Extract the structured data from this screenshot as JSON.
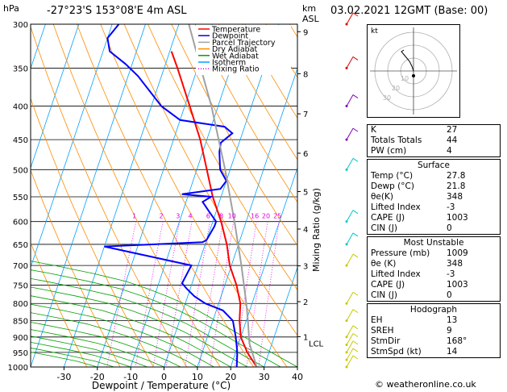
{
  "header": {
    "left_unit": "hPa",
    "location": "-27°23'S  153°08'E  4m  ASL",
    "km_label": "km",
    "asl_label": "ASL",
    "datetime": "03.02.2021  12GMT  (Base: 00)"
  },
  "legend": [
    {
      "label": "Temperature",
      "color": "#ff0000",
      "style": "solid"
    },
    {
      "label": "Dewpoint",
      "color": "#0000ff",
      "style": "solid"
    },
    {
      "label": "Parcel Trajectory",
      "color": "#a0a0a0",
      "style": "solid"
    },
    {
      "label": "Dry Adiabat",
      "color": "#ff8c00",
      "style": "solid"
    },
    {
      "label": "Wet Adiabat",
      "color": "#00a000",
      "style": "solid"
    },
    {
      "label": "Isotherm",
      "color": "#00a0ff",
      "style": "solid"
    },
    {
      "label": "Mixing Ratio",
      "color": "#e000e0",
      "style": "dotted"
    }
  ],
  "chart_data": {
    "type": "skew-t",
    "xlabel": "Dewpoint / Temperature (°C)",
    "ylabel_right": "Mixing Ratio (g/kg)",
    "pressure_ticks": [
      300,
      350,
      400,
      450,
      500,
      550,
      600,
      650,
      700,
      750,
      800,
      850,
      900,
      950,
      1000
    ],
    "temp_ticks": [
      -30,
      -20,
      -10,
      0,
      10,
      20,
      30,
      40
    ],
    "xlim": [
      -40,
      40
    ],
    "ylim": [
      1000,
      300
    ],
    "km_ticks": [
      {
        "label": "9",
        "p": 308
      },
      {
        "label": "8",
        "p": 357
      },
      {
        "label": "7",
        "p": 411
      },
      {
        "label": "6",
        "p": 472
      },
      {
        "label": "5",
        "p": 540
      },
      {
        "label": "4",
        "p": 616
      },
      {
        "label": "3",
        "p": 701
      },
      {
        "label": "2",
        "p": 795
      },
      {
        "label": "1",
        "p": 899
      }
    ],
    "lcl_label": "LCL",
    "lcl_p": 920,
    "mixing_ratio_labels": [
      "1",
      "2",
      "3",
      "4",
      "6",
      "8",
      "10",
      "16",
      "20",
      "25"
    ],
    "series": [
      {
        "name": "Temperature",
        "color": "#ff0000",
        "points": [
          [
            1000,
            27.8
          ],
          [
            950,
            23.5
          ],
          [
            900,
            20.0
          ],
          [
            850,
            18.0
          ],
          [
            800,
            16.5
          ],
          [
            750,
            13.5
          ],
          [
            700,
            9.5
          ],
          [
            650,
            6.5
          ],
          [
            600,
            2.5
          ],
          [
            550,
            -2.5
          ],
          [
            500,
            -7
          ],
          [
            450,
            -12
          ],
          [
            400,
            -18.5
          ],
          [
            350,
            -26
          ],
          [
            330,
            -29.5
          ]
        ]
      },
      {
        "name": "Dewpoint",
        "color": "#0000ff",
        "points": [
          [
            1000,
            21.8
          ],
          [
            950,
            20.5
          ],
          [
            900,
            18.5
          ],
          [
            850,
            16
          ],
          [
            820,
            12
          ],
          [
            800,
            6
          ],
          [
            780,
            2
          ],
          [
            760,
            -1
          ],
          [
            745,
            -3
          ],
          [
            700,
            -2
          ],
          [
            655,
            -30
          ],
          [
            645,
            -1
          ],
          [
            640,
            0
          ],
          [
            610,
            1
          ],
          [
            600,
            1
          ],
          [
            580,
            -2
          ],
          [
            560,
            -5
          ],
          [
            550,
            -3
          ],
          [
            545,
            -12
          ],
          [
            535,
            -1
          ],
          [
            520,
            0
          ],
          [
            500,
            -3
          ],
          [
            470,
            -5
          ],
          [
            455,
            -5.5
          ],
          [
            440,
            -3
          ],
          [
            430,
            -6
          ],
          [
            420,
            -20
          ],
          [
            400,
            -27
          ],
          [
            360,
            -37
          ],
          [
            345,
            -42
          ],
          [
            330,
            -48
          ],
          [
            315,
            -50
          ],
          [
            300,
            -48
          ]
        ]
      },
      {
        "name": "Parcel Trajectory",
        "color": "#a0a0a0",
        "points": [
          [
            1000,
            27.8
          ],
          [
            920,
            23.2
          ],
          [
            850,
            20.5
          ],
          [
            800,
            18.3
          ],
          [
            700,
            13.0
          ],
          [
            600,
            6.5
          ],
          [
            500,
            -1.5
          ],
          [
            400,
            -12
          ],
          [
            350,
            -19
          ],
          [
            300,
            -27
          ]
        ]
      }
    ],
    "wind_barbs": [
      {
        "p": 1000
      },
      {
        "p": 975
      },
      {
        "p": 950
      },
      {
        "p": 925
      },
      {
        "p": 900
      },
      {
        "p": 850
      },
      {
        "p": 800
      },
      {
        "p": 700
      },
      {
        "p": 650
      },
      {
        "p": 600
      },
      {
        "p": 500
      },
      {
        "p": 450
      },
      {
        "p": 400
      },
      {
        "p": 350
      },
      {
        "p": 300
      }
    ],
    "hodograph": {
      "label": "kt",
      "ring_labels": [
        "10",
        "20",
        "30"
      ]
    }
  },
  "indices": [
    {
      "label": "K",
      "value": "27"
    },
    {
      "label": "Totals Totals",
      "value": "44"
    },
    {
      "label": "PW (cm)",
      "value": "4"
    }
  ],
  "surface": {
    "title": "Surface",
    "rows": [
      {
        "label": "Temp (°C)",
        "value": "27.8"
      },
      {
        "label": "Dewp (°C)",
        "value": "21.8"
      },
      {
        "label": "θe(K)",
        "value": "348"
      },
      {
        "label": "Lifted Index",
        "value": "-3"
      },
      {
        "label": "CAPE (J)",
        "value": "1003"
      },
      {
        "label": "CIN (J)",
        "value": "0"
      }
    ]
  },
  "most_unstable": {
    "title": "Most Unstable",
    "rows": [
      {
        "label": "Pressure (mb)",
        "value": "1009"
      },
      {
        "label": "θe (K)",
        "value": "348"
      },
      {
        "label": "Lifted Index",
        "value": "-3"
      },
      {
        "label": "CAPE (J)",
        "value": "1003"
      },
      {
        "label": "CIN (J)",
        "value": "0"
      }
    ]
  },
  "hodograph_box": {
    "title": "Hodograph",
    "rows": [
      {
        "label": "EH",
        "value": "13"
      },
      {
        "label": "SREH",
        "value": "9"
      },
      {
        "label": "StmDir",
        "value": "168°"
      },
      {
        "label": "StmSpd (kt)",
        "value": "14"
      }
    ]
  },
  "footer": "© weatheronline.co.uk"
}
